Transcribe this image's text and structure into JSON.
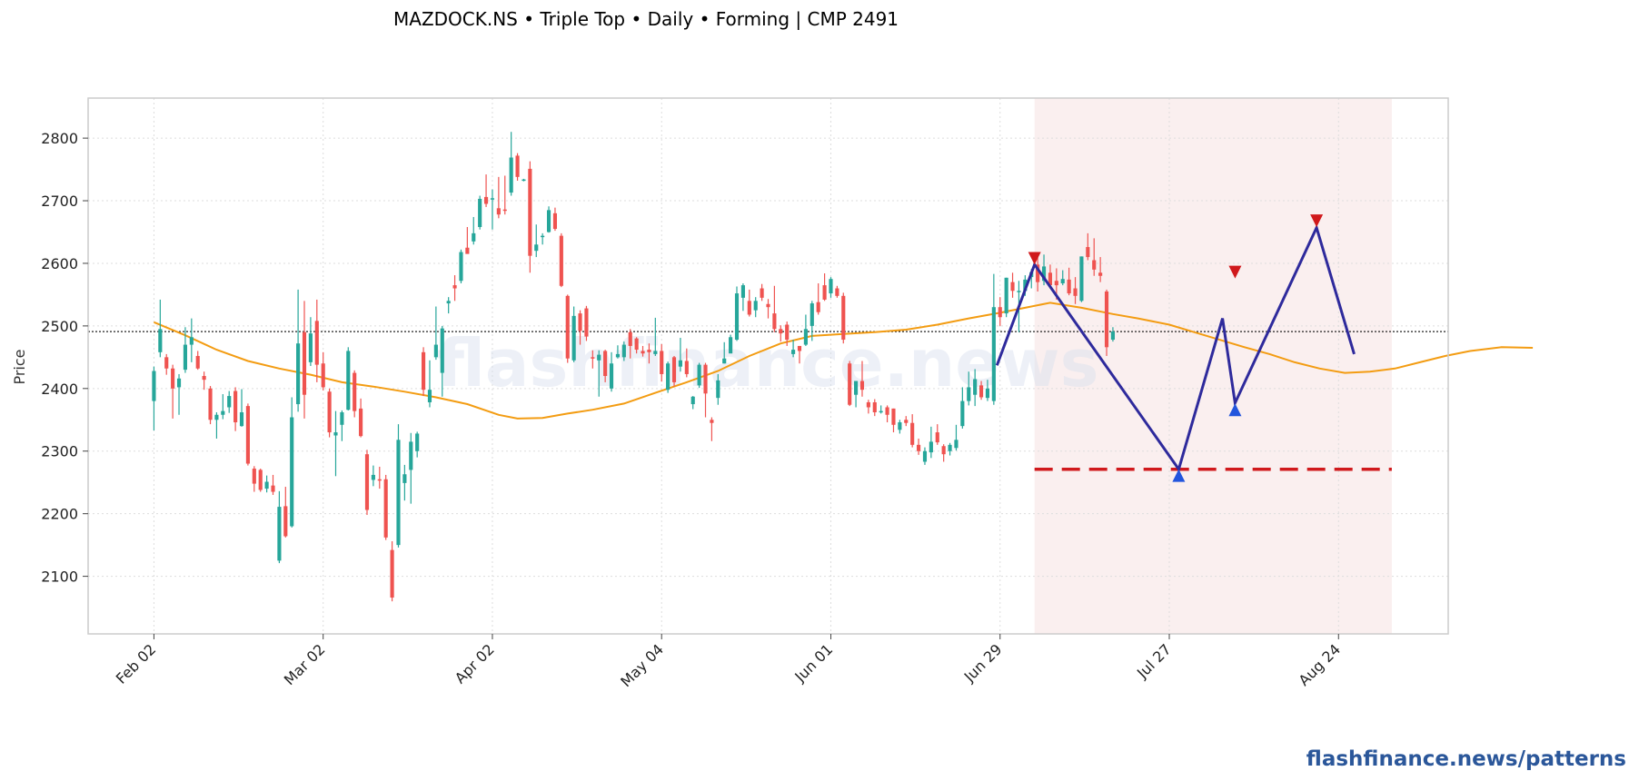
{
  "chart_data": {
    "type": "candlestick",
    "title": "MAZDOCK.NS  •  Triple Top  •  Daily  •  Forming  |  CMP 2491",
    "ylabel": "Price",
    "ylim": [
      2008,
      2864
    ],
    "xlim": [
      -10.5,
      206.5
    ],
    "y_ticks": [
      2100,
      2200,
      2300,
      2400,
      2500,
      2600,
      2700,
      2800
    ],
    "x_ticks": [
      {
        "label": "Feb 02",
        "x": 0
      },
      {
        "label": "Mar 02",
        "x": 27
      },
      {
        "label": "Apr 02",
        "x": 54
      },
      {
        "label": "May 04",
        "x": 81
      },
      {
        "label": "Jun 01",
        "x": 108
      },
      {
        "label": "Jun 29",
        "x": 135
      },
      {
        "label": "Jul 27",
        "x": 162
      },
      {
        "label": "Aug 24",
        "x": 189
      }
    ],
    "grid": true,
    "colors": {
      "up": "#26a69a",
      "down": "#ef5350",
      "ma": "#f39c12",
      "pattern": "#2e2a9c",
      "support": "#d0191c",
      "peak_marker": "#d0191c",
      "trough_marker": "#2255dd",
      "highlight": "#f9ecec"
    },
    "cmp_line": 2491,
    "support_line": {
      "value": 2271,
      "x_start": 140.5,
      "x_end": 197.5
    },
    "highlight_range": [
      140.5,
      197.5
    ],
    "candles": [
      [
        2380,
        2428,
        2333,
        2435
      ],
      [
        2458,
        2495,
        2450,
        2542
      ],
      [
        2450,
        2432,
        2422,
        2455
      ],
      [
        2432,
        2400,
        2352,
        2438
      ],
      [
        2402,
        2416,
        2358,
        2423
      ],
      [
        2430,
        2470,
        2425,
        2498
      ],
      [
        2470,
        2482,
        2442,
        2512
      ],
      [
        2452,
        2432,
        2430,
        2460
      ],
      [
        2420,
        2414,
        2398,
        2427
      ],
      [
        2400,
        2350,
        2343,
        2404
      ],
      [
        2350,
        2358,
        2320,
        2362
      ],
      [
        2358,
        2364,
        2351,
        2391
      ],
      [
        2370,
        2388,
        2361,
        2396
      ],
      [
        2396,
        2346,
        2332,
        2402
      ],
      [
        2340,
        2362,
        2339,
        2399
      ],
      [
        2372,
        2280,
        2277,
        2376
      ],
      [
        2272,
        2248,
        2235,
        2276
      ],
      [
        2270,
        2238,
        2235,
        2272
      ],
      [
        2240,
        2251,
        2234,
        2261
      ],
      [
        2245,
        2235,
        2230,
        2262
      ],
      [
        2125,
        2211,
        2121,
        2236
      ],
      [
        2212,
        2164,
        2162,
        2243
      ],
      [
        2180,
        2354,
        2178,
        2386
      ],
      [
        2375,
        2472,
        2363,
        2558
      ],
      [
        2490,
        2390,
        2352,
        2540
      ],
      [
        2442,
        2488,
        2436,
        2514
      ],
      [
        2508,
        2438,
        2410,
        2542
      ],
      [
        2440,
        2402,
        2397,
        2458
      ],
      [
        2395,
        2330,
        2322,
        2400
      ],
      [
        2325,
        2330,
        2260,
        2364
      ],
      [
        2342,
        2362,
        2316,
        2365
      ],
      [
        2366,
        2460,
        2365,
        2466
      ],
      [
        2425,
        2364,
        2354,
        2429
      ],
      [
        2368,
        2324,
        2322,
        2384
      ],
      [
        2295,
        2206,
        2198,
        2302
      ],
      [
        2254,
        2262,
        2244,
        2277
      ],
      [
        2255,
        2254,
        2240,
        2275
      ],
      [
        2255,
        2162,
        2158,
        2262
      ],
      [
        2142,
        2066,
        2060,
        2156
      ],
      [
        2150,
        2318,
        2146,
        2343
      ],
      [
        2249,
        2263,
        2221,
        2278
      ],
      [
        2270,
        2315,
        2216,
        2329
      ],
      [
        2300,
        2328,
        2290,
        2331
      ],
      [
        2458,
        2398,
        2388,
        2466
      ],
      [
        2378,
        2398,
        2370,
        2445
      ],
      [
        2450,
        2470,
        2446,
        2531
      ],
      [
        2425,
        2496,
        2387,
        2500
      ],
      [
        2536,
        2540,
        2520,
        2546
      ],
      [
        2565,
        2560,
        2540,
        2581
      ],
      [
        2572,
        2618,
        2568,
        2622
      ],
      [
        2625,
        2615,
        2617,
        2658
      ],
      [
        2635,
        2648,
        2630,
        2674
      ],
      [
        2658,
        2703,
        2654,
        2708
      ],
      [
        2706,
        2695,
        2690,
        2742
      ],
      [
        2704,
        2704,
        2654,
        2718
      ],
      [
        2688,
        2678,
        2672,
        2738
      ],
      [
        2686,
        2685,
        2678,
        2740
      ],
      [
        2713,
        2769,
        2708,
        2810
      ],
      [
        2772,
        2738,
        2732,
        2776
      ],
      [
        2734,
        2734,
        2731,
        2735
      ],
      [
        2751,
        2612,
        2585,
        2763
      ],
      [
        2620,
        2630,
        2610,
        2662
      ],
      [
        2642,
        2644,
        2630,
        2648
      ],
      [
        2650,
        2685,
        2649,
        2691
      ],
      [
        2680,
        2655,
        2652,
        2689
      ],
      [
        2644,
        2564,
        2562,
        2648
      ],
      [
        2548,
        2448,
        2441,
        2550
      ],
      [
        2445,
        2516,
        2442,
        2531
      ],
      [
        2520,
        2492,
        2470,
        2525
      ],
      [
        2528,
        2483,
        2476,
        2532
      ],
      [
        2450,
        2448,
        2432,
        2461
      ],
      [
        2445,
        2454,
        2387,
        2461
      ],
      [
        2460,
        2420,
        2410,
        2462
      ],
      [
        2400,
        2440,
        2395,
        2458
      ],
      [
        2450,
        2455,
        2448,
        2469
      ],
      [
        2450,
        2470,
        2444,
        2475
      ],
      [
        2490,
        2468,
        2448,
        2495
      ],
      [
        2480,
        2462,
        2456,
        2482
      ],
      [
        2460,
        2456,
        2451,
        2468
      ],
      [
        2462,
        2458,
        2440,
        2472
      ],
      [
        2455,
        2460,
        2452,
        2513
      ],
      [
        2460,
        2423,
        2411,
        2471
      ],
      [
        2398,
        2440,
        2393,
        2443
      ],
      [
        2450,
        2410,
        2403,
        2452
      ],
      [
        2435,
        2445,
        2427,
        2481
      ],
      [
        2444,
        2423,
        2418,
        2464
      ],
      [
        2375,
        2387,
        2367,
        2388
      ],
      [
        2405,
        2438,
        2401,
        2441
      ],
      [
        2438,
        2392,
        2354,
        2441
      ],
      [
        2350,
        2345,
        2316,
        2354
      ],
      [
        2385,
        2413,
        2374,
        2423
      ],
      [
        2440,
        2448,
        2440,
        2474
      ],
      [
        2456,
        2482,
        2458,
        2486
      ],
      [
        2478,
        2552,
        2476,
        2563
      ],
      [
        2545,
        2565,
        2524,
        2568
      ],
      [
        2540,
        2518,
        2515,
        2558
      ],
      [
        2525,
        2540,
        2514,
        2546
      ],
      [
        2560,
        2545,
        2540,
        2567
      ],
      [
        2535,
        2530,
        2512,
        2543
      ],
      [
        2520,
        2495,
        2490,
        2564
      ],
      [
        2495,
        2488,
        2475,
        2501
      ],
      [
        2502,
        2478,
        2468,
        2507
      ],
      [
        2455,
        2462,
        2450,
        2478
      ],
      [
        2468,
        2460,
        2440,
        2468
      ],
      [
        2470,
        2495,
        2468,
        2518
      ],
      [
        2500,
        2536,
        2476,
        2540
      ],
      [
        2538,
        2522,
        2518,
        2568
      ],
      [
        2565,
        2542,
        2540,
        2584
      ],
      [
        2552,
        2575,
        2545,
        2578
      ],
      [
        2560,
        2548,
        2545,
        2564
      ],
      [
        2548,
        2478,
        2472,
        2553
      ],
      [
        2440,
        2374,
        2372,
        2444
      ],
      [
        2390,
        2412,
        2370,
        2412
      ],
      [
        2412,
        2398,
        2387,
        2444
      ],
      [
        2378,
        2370,
        2360,
        2382
      ],
      [
        2378,
        2362,
        2356,
        2383
      ],
      [
        2362,
        2364,
        2360,
        2373
      ],
      [
        2370,
        2358,
        2346,
        2373
      ],
      [
        2368,
        2342,
        2330,
        2368
      ],
      [
        2334,
        2346,
        2328,
        2350
      ],
      [
        2350,
        2345,
        2340,
        2356
      ],
      [
        2345,
        2310,
        2306,
        2359
      ],
      [
        2310,
        2300,
        2294,
        2320
      ],
      [
        2283,
        2300,
        2278,
        2306
      ],
      [
        2298,
        2315,
        2289,
        2339
      ],
      [
        2330,
        2314,
        2310,
        2343
      ],
      [
        2308,
        2295,
        2283,
        2311
      ],
      [
        2300,
        2310,
        2293,
        2313
      ],
      [
        2305,
        2318,
        2301,
        2342
      ],
      [
        2340,
        2380,
        2336,
        2402
      ],
      [
        2380,
        2402,
        2373,
        2427
      ],
      [
        2390,
        2415,
        2372,
        2431
      ],
      [
        2405,
        2386,
        2382,
        2412
      ],
      [
        2385,
        2400,
        2380,
        2414
      ],
      [
        2380,
        2530,
        2374,
        2583
      ],
      [
        2530,
        2514,
        2500,
        2546
      ],
      [
        2520,
        2577,
        2514,
        2577
      ],
      [
        2570,
        2556,
        2545,
        2585
      ],
      [
        2556,
        2556,
        2490,
        2572
      ],
      [
        2556,
        2574,
        2548,
        2581
      ],
      [
        2578,
        2586,
        2560,
        2591
      ],
      [
        2598,
        2570,
        2555,
        2618
      ],
      [
        2572,
        2595,
        2565,
        2614
      ],
      [
        2585,
        2565,
        2560,
        2598
      ],
      [
        2572,
        2565,
        2542,
        2592
      ],
      [
        2568,
        2575,
        2565,
        2589
      ],
      [
        2574,
        2552,
        2549,
        2593
      ],
      [
        2560,
        2548,
        2535,
        2578
      ],
      [
        2540,
        2611,
        2538,
        2611
      ],
      [
        2626,
        2610,
        2605,
        2648
      ],
      [
        2605,
        2590,
        2580,
        2640
      ],
      [
        2585,
        2580,
        2570,
        2610
      ],
      [
        2555,
        2466,
        2452,
        2558
      ],
      [
        2478,
        2491,
        2475,
        2498
      ]
    ],
    "moving_average": [
      [
        0,
        2506
      ],
      [
        5,
        2485
      ],
      [
        10,
        2462
      ],
      [
        15,
        2444
      ],
      [
        20,
        2432
      ],
      [
        25,
        2422
      ],
      [
        30,
        2410
      ],
      [
        35,
        2403
      ],
      [
        40,
        2395
      ],
      [
        45,
        2386
      ],
      [
        50,
        2375
      ],
      [
        55,
        2358
      ],
      [
        58,
        2352
      ],
      [
        62,
        2353
      ],
      [
        66,
        2360
      ],
      [
        70,
        2366
      ],
      [
        75,
        2376
      ],
      [
        80,
        2393
      ],
      [
        85,
        2410
      ],
      [
        90,
        2428
      ],
      [
        95,
        2452
      ],
      [
        100,
        2472
      ],
      [
        105,
        2484
      ],
      [
        110,
        2487
      ],
      [
        115,
        2490
      ],
      [
        120,
        2494
      ],
      [
        125,
        2502
      ],
      [
        130,
        2512
      ],
      [
        135,
        2521
      ],
      [
        140,
        2531
      ],
      [
        143,
        2537
      ],
      [
        148,
        2529
      ],
      [
        153,
        2519
      ],
      [
        157,
        2512
      ],
      [
        162,
        2502
      ],
      [
        166,
        2490
      ],
      [
        170,
        2478
      ],
      [
        174,
        2466
      ],
      [
        178,
        2455
      ],
      [
        182,
        2442
      ],
      [
        186,
        2432
      ],
      [
        190,
        2425
      ],
      [
        194,
        2427
      ],
      [
        198,
        2432
      ],
      [
        202,
        2442
      ],
      [
        206,
        2452
      ],
      [
        210,
        2460
      ],
      [
        215,
        2466
      ],
      [
        220,
        2465
      ]
    ],
    "pattern_line": [
      [
        134.5,
        2437
      ],
      [
        140.5,
        2598
      ],
      [
        163.5,
        2271
      ],
      [
        170.5,
        2512
      ],
      [
        172.5,
        2377
      ],
      [
        185.5,
        2657
      ],
      [
        191.5,
        2455
      ]
    ],
    "peak_markers": [
      [
        140.5,
        2608
      ],
      [
        172.5,
        2586
      ],
      [
        185.5,
        2668
      ]
    ],
    "trough_markers": [
      [
        163.5,
        2261
      ],
      [
        172.5,
        2366
      ]
    ]
  },
  "watermark": "flashfinance.news",
  "footer": "flashfinance.news/patterns"
}
